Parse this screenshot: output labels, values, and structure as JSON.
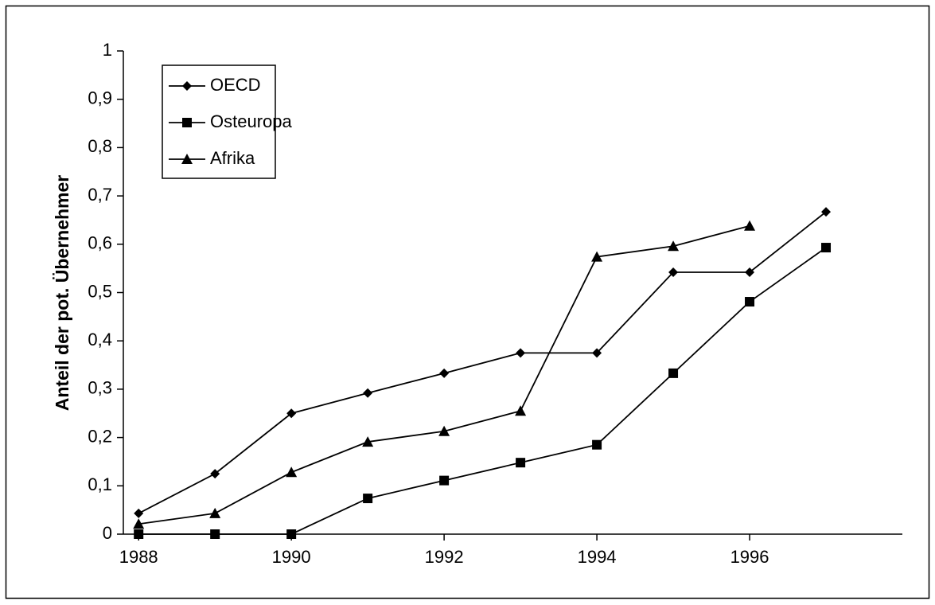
{
  "chart_data": {
    "type": "line",
    "y_label": "Anteil der pot. Übernehmer",
    "x": [
      1988,
      1989,
      1990,
      1991,
      1992,
      1993,
      1994,
      1995,
      1996,
      1997
    ],
    "series": [
      {
        "name": "OECD",
        "color": "#000000",
        "marker": "diamond",
        "values": [
          0.043,
          0.125,
          0.25,
          0.292,
          0.333,
          0.375,
          0.375,
          0.542,
          0.542,
          0.667
        ]
      },
      {
        "name": "Osteuropa",
        "color": "#000000",
        "marker": "square",
        "values": [
          0,
          0,
          0,
          0.074,
          0.111,
          0.148,
          0.185,
          0.333,
          0.481,
          0.593
        ]
      },
      {
        "name": "Afrika",
        "color": "#000000",
        "marker": "triangle",
        "values": [
          0.021,
          0.043,
          0.128,
          0.191,
          0.213,
          0.255,
          0.574,
          0.596,
          0.638,
          null
        ]
      }
    ],
    "xlim": [
      1987.8,
      1998
    ],
    "xticks": [
      1988,
      1990,
      1992,
      1994,
      1996
    ],
    "ylim": [
      0,
      1
    ],
    "yticks": [
      0,
      {
        "value": 0.1,
        "label": "0,1"
      },
      {
        "value": 0.2,
        "label": "0,2"
      },
      {
        "value": 0.3,
        "label": "0,3"
      },
      {
        "value": 0.4,
        "label": "0,4"
      },
      {
        "value": 0.5,
        "label": "0,5"
      },
      {
        "value": 0.6,
        "label": "0,6"
      },
      {
        "value": 0.7,
        "label": "0,7"
      },
      {
        "value": 0.8,
        "label": "0,8"
      },
      {
        "value": 0.9,
        "label": "0,9"
      },
      1
    ],
    "legend": "upper left"
  }
}
